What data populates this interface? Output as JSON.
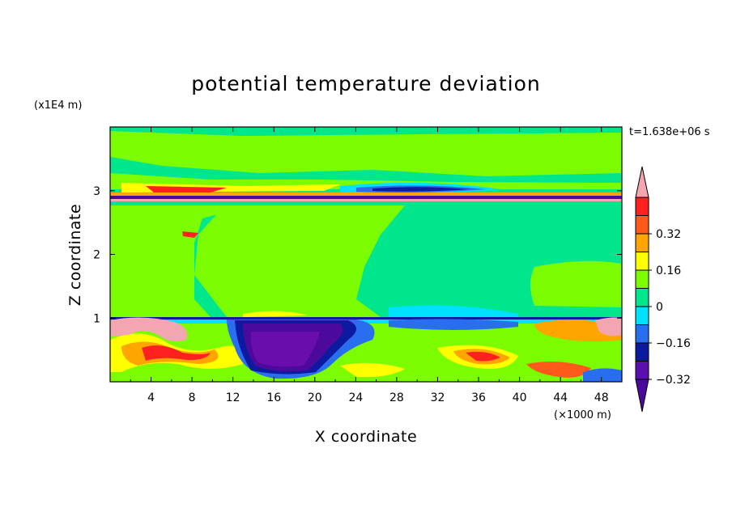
{
  "chart_data": {
    "type": "heatmap",
    "title": "potential temperature deviation",
    "xlabel": "X coordinate",
    "ylabel": "Z coordinate",
    "x_unit": "(×1000 m)",
    "y_unit": "(x1E4 m)",
    "time_label": "t=1.638e+06 s",
    "xlim": [
      0,
      50
    ],
    "ylim": [
      0,
      4
    ],
    "x_ticks": [
      "4",
      "8",
      "12",
      "16",
      "20",
      "24",
      "28",
      "32",
      "36",
      "40",
      "44",
      "48"
    ],
    "y_ticks": [
      "1",
      "2",
      "3"
    ],
    "colorbar": {
      "levels": [
        -0.4,
        -0.32,
        -0.24,
        -0.16,
        -0.08,
        0,
        0.08,
        0.16,
        0.24,
        0.32,
        0.4
      ],
      "tick_labels": [
        "0.32",
        "0.16",
        "0",
        "−0.16",
        "−0.32"
      ],
      "colors_bottom_to_top": [
        "#4b0a9c",
        "#5a0fae",
        "#0c1aa0",
        "#2a6ef0",
        "#00e0ff",
        "#00e68c",
        "#7cfc00",
        "#ffff00",
        "#ffa500",
        "#ff5a1a",
        "#ff2020",
        "#f4a6b0"
      ]
    },
    "field_regions": {
      "background": "#00e68c",
      "upper_light_green": "#7cfc00",
      "inversion_band_z": 2.85,
      "boundary_layer_top_z": 1.0,
      "cold_pool_x": [
        10,
        25
      ],
      "cold_pool_color": "#6a0dad"
    }
  }
}
